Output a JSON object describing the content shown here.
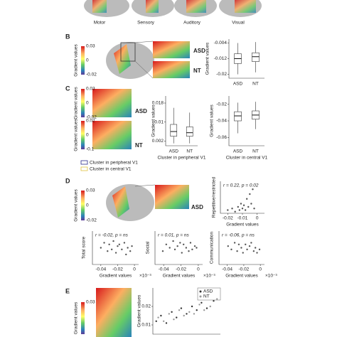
{
  "top_labels": [
    "Motor",
    "Sensory",
    "Auditory",
    "Visual"
  ],
  "panel_labels": [
    "B",
    "C",
    "D",
    "E"
  ],
  "colorbars": [
    {
      "label": "Gradient values",
      "ticks": [
        "0.03",
        "0",
        "-0.02"
      ]
    },
    {
      "label": "Gradient values",
      "ticks": [
        "0.03",
        "0",
        "-0.02"
      ]
    },
    {
      "label": "Gradient values",
      "ticks": [
        "0.02",
        "0",
        "-0.1"
      ]
    },
    {
      "label": "Gradient values",
      "ticks": [
        "0.03",
        "0",
        "-0.02"
      ]
    },
    {
      "label": "Gradient values",
      "ticks": [
        "0.03"
      ]
    }
  ],
  "group_tags": [
    "ASD",
    "NT",
    "ASD",
    "NT",
    "ASD"
  ],
  "cluster_legend": [
    "Cluster in peripheral V1",
    "Cluster in central V1"
  ],
  "chart_data": [
    {
      "type": "box",
      "ylabel": "Gradient values",
      "categories": [
        "ASD",
        "NT"
      ],
      "ylim": [
        -0.022,
        -0.002
      ],
      "yticks": [
        -0.004,
        -0.012,
        -0.02
      ],
      "boxes": [
        {
          "min": -0.02,
          "q1": -0.0145,
          "median": -0.012,
          "q3": -0.0095,
          "max": -0.004
        },
        {
          "min": -0.019,
          "q1": -0.0135,
          "median": -0.011,
          "q3": -0.009,
          "max": -0.0035
        }
      ]
    },
    {
      "type": "box",
      "ylabel": "Gradient values",
      "xlabel": "Cluster in peripheral V1",
      "categories": [
        "ASD",
        "NT"
      ],
      "ylim": [
        0,
        0.021
      ],
      "yticks": [
        0.018,
        0.01,
        0.002
      ],
      "boxes": [
        {
          "min": 0.001,
          "q1": 0.004,
          "median": 0.006,
          "q3": 0.009,
          "max": 0.016
        },
        {
          "min": 0.001,
          "q1": 0.004,
          "median": 0.0055,
          "q3": 0.008,
          "max": 0.014
        }
      ]
    },
    {
      "type": "box",
      "ylabel": "Gradient values",
      "xlabel": "Cluster in central V1",
      "categories": [
        "ASD",
        "NT"
      ],
      "ylim": [
        -0.07,
        -0.01
      ],
      "yticks": [
        -0.02,
        -0.04,
        -0.06
      ],
      "boxes": [
        {
          "min": -0.055,
          "q1": -0.04,
          "median": -0.034,
          "q3": -0.029,
          "max": -0.018
        },
        {
          "min": -0.05,
          "q1": -0.038,
          "median": -0.033,
          "q3": -0.028,
          "max": -0.017
        }
      ]
    },
    {
      "type": "scatter",
      "ylabel": "Repetitive/restricted",
      "xlabel": "Gradient values",
      "annotation": "r = 0.22, p = 0.02",
      "xlim": [
        -0.025,
        0.005
      ],
      "xticks": [
        -0.02,
        -0.01,
        0
      ],
      "ylim": [
        0,
        20
      ],
      "x": [
        -0.02,
        -0.017,
        -0.015,
        -0.013,
        -0.012,
        -0.011,
        -0.01,
        -0.009,
        -0.008,
        -0.007,
        -0.006,
        -0.005,
        -0.004,
        -0.003,
        -0.002
      ],
      "y": [
        2,
        3,
        1,
        4,
        2,
        6,
        3,
        5,
        2,
        9,
        4,
        12,
        6,
        15,
        3
      ]
    },
    {
      "type": "scatter",
      "ylabel": "Total score",
      "xlabel": "Gradient values",
      "annotation": "r = -0.02, p = ns",
      "multiplier": "×10⁻³",
      "xlim": [
        -0.05,
        0.005
      ],
      "xticks": [
        -0.04,
        -0.02,
        0
      ],
      "ylim": [
        0,
        20
      ],
      "x": [
        -0.04,
        -0.036,
        -0.032,
        -0.03,
        -0.027,
        -0.025,
        -0.022,
        -0.02,
        -0.018,
        -0.015,
        -0.012,
        -0.01,
        -0.008,
        -0.005,
        -0.003
      ],
      "y": [
        10,
        13,
        8,
        12,
        9,
        14,
        7,
        11,
        12,
        9,
        13,
        6,
        10,
        8,
        11
      ]
    },
    {
      "type": "scatter",
      "ylabel": "Social",
      "xlabel": "Gradient values",
      "annotation": "r = 0.01, p = ns",
      "multiplier": "×10⁻³",
      "xlim": [
        -0.05,
        0.005
      ],
      "xticks": [
        -0.04,
        -0.02,
        0
      ],
      "ylim": [
        0,
        20
      ],
      "x": [
        -0.041,
        -0.037,
        -0.033,
        -0.029,
        -0.027,
        -0.024,
        -0.021,
        -0.019,
        -0.017,
        -0.014,
        -0.011,
        -0.009,
        -0.007,
        -0.004,
        -0.002
      ],
      "y": [
        8,
        12,
        10,
        14,
        9,
        11,
        13,
        7,
        12,
        10,
        8,
        13,
        9,
        11,
        10
      ]
    },
    {
      "type": "scatter",
      "ylabel": "Communication",
      "xlabel": "Gradient values",
      "annotation": "r = -0.06, p = ns",
      "multiplier": "×10⁻³",
      "xlim": [
        -0.05,
        0.005
      ],
      "xticks": [
        -0.04,
        -0.02,
        0
      ],
      "ylim": [
        0,
        20
      ],
      "x": [
        -0.039,
        -0.035,
        -0.031,
        -0.028,
        -0.026,
        -0.023,
        -0.021,
        -0.018,
        -0.016,
        -0.013,
        -0.011,
        -0.008,
        -0.006,
        -0.004,
        -0.001
      ],
      "y": [
        11,
        9,
        13,
        8,
        12,
        10,
        7,
        12,
        9,
        11,
        13,
        8,
        10,
        7,
        9
      ]
    },
    {
      "type": "scatter",
      "ylabel": "Gradient values",
      "ylim": [
        0.005,
        0.03
      ],
      "yticks": [
        0.02,
        0.01
      ],
      "xlim": [
        0,
        1
      ],
      "series": [
        {
          "name": "ASD",
          "color": "#333333",
          "x": [
            0.05,
            0.12,
            0.2,
            0.28,
            0.35,
            0.42,
            0.5,
            0.58,
            0.65,
            0.72,
            0.8,
            0.9
          ],
          "values": [
            0.012,
            0.015,
            0.011,
            0.017,
            0.014,
            0.019,
            0.016,
            0.02,
            0.018,
            0.022,
            0.019,
            0.023
          ]
        },
        {
          "name": "NT",
          "color": "#999999",
          "x": [
            0.08,
            0.16,
            0.24,
            0.31,
            0.39,
            0.46,
            0.54,
            0.61,
            0.69,
            0.76,
            0.85,
            0.95
          ],
          "values": [
            0.014,
            0.012,
            0.016,
            0.013,
            0.018,
            0.015,
            0.017,
            0.016,
            0.021,
            0.018,
            0.02,
            0.024
          ]
        }
      ]
    }
  ]
}
